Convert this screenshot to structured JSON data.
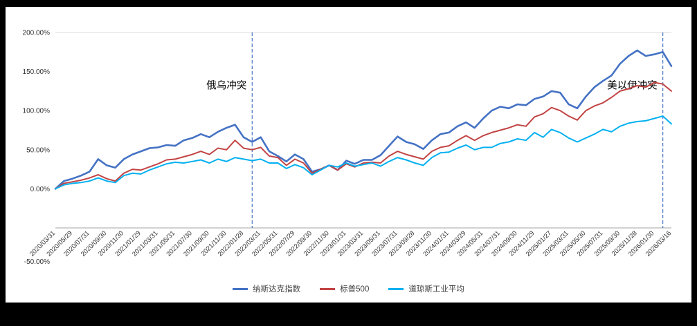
{
  "chart_data": {
    "type": "line",
    "title": "",
    "xlabel": "",
    "ylabel": "",
    "ylim": [
      -50,
      200
    ],
    "grid": false,
    "legend_position": "bottom",
    "points_per_series": 73,
    "tick_every": 2,
    "y_ticks": {
      "labels": [
        "200.00%",
        "150.00%",
        "100.00%",
        "50.00%",
        "0.00%",
        "-50.00%"
      ],
      "values": [
        200,
        150,
        100,
        50,
        0,
        -50
      ]
    },
    "x_tick_labels": [
      "2020/03/31",
      "2020/05/29",
      "2020/07/31",
      "2020/09/30",
      "2020/11/30",
      "2021/01/29",
      "2021/03/31",
      "2021/05/31",
      "2021/07/30",
      "2021/09/30",
      "2021/11/30",
      "2022/01/28",
      "2022/03/31",
      "2022/05/31",
      "2022/07/29",
      "2022/09/30",
      "2022/11/30",
      "2023/01/31",
      "2023/03/31",
      "2023/05/31",
      "2023/07/31",
      "2023/09/28",
      "2023/11/30",
      "2024/01/31",
      "2024/03/29",
      "2024/05/31",
      "2024/07/31",
      "2024/09/30",
      "2024/11/29",
      "2025/01/27",
      "2025/03/31",
      "2025/05/30",
      "2025/07/31",
      "2025/09/30",
      "2025/11/28",
      "2026/01/30",
      "2026/03/16"
    ],
    "series": [
      {
        "name": "纳斯达克指数",
        "color": "#4472c4",
        "values": [
          0,
          10,
          13,
          17,
          22,
          38,
          30,
          27,
          38,
          44,
          48,
          52,
          53,
          56,
          55,
          62,
          65,
          70,
          66,
          73,
          78,
          82,
          66,
          60,
          66,
          48,
          42,
          35,
          44,
          38,
          22,
          25,
          30,
          24,
          36,
          32,
          37,
          37,
          43,
          55,
          67,
          60,
          57,
          51,
          62,
          70,
          72,
          80,
          85,
          78,
          90,
          100,
          105,
          103,
          108,
          107,
          115,
          118,
          125,
          123,
          108,
          103,
          118,
          130,
          138,
          145,
          160,
          170,
          177,
          170,
          172,
          175,
          157
        ]
      },
      {
        "name": "标普500",
        "color": "#c24444",
        "values": [
          0,
          7,
          9,
          11,
          14,
          18,
          13,
          10,
          20,
          25,
          24,
          28,
          32,
          37,
          38,
          41,
          44,
          48,
          44,
          52,
          50,
          62,
          52,
          50,
          53,
          42,
          40,
          30,
          38,
          33,
          20,
          25,
          30,
          24,
          32,
          28,
          33,
          34,
          33,
          42,
          48,
          44,
          41,
          38,
          48,
          53,
          55,
          62,
          68,
          62,
          68,
          72,
          75,
          78,
          82,
          80,
          92,
          96,
          104,
          100,
          93,
          88,
          100,
          106,
          110,
          117,
          125,
          128,
          132,
          130,
          136,
          134,
          125
        ]
      },
      {
        "name": "道琼斯工业平均",
        "color": "#00b0f0",
        "values": [
          0,
          5,
          7,
          8,
          10,
          14,
          10,
          8,
          17,
          20,
          19,
          24,
          28,
          32,
          34,
          33,
          35,
          37,
          33,
          38,
          35,
          40,
          38,
          36,
          38,
          33,
          33,
          26,
          31,
          27,
          18,
          24,
          30,
          28,
          33,
          29,
          31,
          33,
          29,
          35,
          40,
          37,
          33,
          30,
          40,
          46,
          47,
          52,
          56,
          50,
          53,
          53,
          58,
          60,
          64,
          62,
          72,
          66,
          76,
          72,
          65,
          60,
          65,
          70,
          76,
          73,
          80,
          84,
          86,
          87,
          90,
          93,
          83
        ]
      }
    ],
    "annotations": [
      {
        "label": "俄乌冲突",
        "x_index": 23,
        "label_value": 128
      },
      {
        "label": "美以伊冲突",
        "x_index": 71,
        "label_value": 128
      }
    ],
    "annotation_line_color": "#4472c4",
    "axis_line_color": "#a6a6a6",
    "top_line_color": "#d9d9d9",
    "tick_label_color": "#333333"
  }
}
